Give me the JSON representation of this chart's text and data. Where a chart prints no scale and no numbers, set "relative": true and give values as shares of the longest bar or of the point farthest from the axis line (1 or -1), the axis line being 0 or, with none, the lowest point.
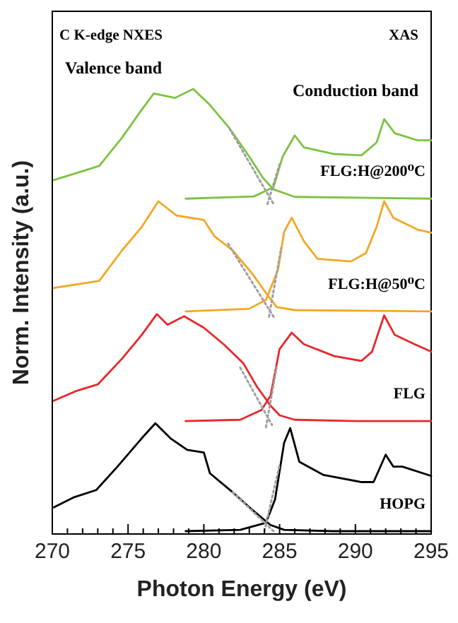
{
  "chart_data": {
    "type": "line",
    "relative": true,
    "xlabel": "Photon Energy (eV)",
    "ylabel": "Norm. Intensity (a.u.)",
    "xlim": [
      270,
      295
    ],
    "xticks": [
      270,
      {
        "value": 271,
        "label": null
      },
      {
        "value": 272,
        "label": null
      },
      {
        "value": 273,
        "label": null
      },
      {
        "value": 274,
        "label": null
      },
      275,
      {
        "value": 276,
        "label": null
      },
      {
        "value": 277,
        "label": null
      },
      {
        "value": 278,
        "label": null
      },
      {
        "value": 279,
        "label": null
      },
      280,
      {
        "value": 281,
        "label": null
      },
      {
        "value": 282,
        "label": null
      },
      {
        "value": 283,
        "label": null
      },
      {
        "value": 284,
        "label": null
      },
      285,
      {
        "value": 286,
        "label": null
      },
      {
        "value": 287,
        "label": null
      },
      {
        "value": 288,
        "label": null
      },
      {
        "value": 289,
        "label": null
      },
      290,
      {
        "value": 291,
        "label": null
      },
      {
        "value": 292,
        "label": null
      },
      {
        "value": 293,
        "label": null
      },
      {
        "value": 294,
        "label": null
      },
      295
    ],
    "annotations": [
      "C K-edge NXES",
      "Valence band",
      "XAS",
      "Conduction band"
    ],
    "series": [
      {
        "color": "#000000",
        "x": [
          270.1,
          271.45,
          272.9,
          274.3,
          275.9,
          276.8,
          277.8,
          278.9,
          280.0,
          280.4,
          281.9,
          283.1,
          284.4,
          285.3,
          288.5,
          295
        ],
        "values": [
          0.054,
          0.077,
          0.093,
          0.146,
          0.21,
          0.244,
          0.21,
          0.184,
          0.178,
          0.131,
          0.088,
          0.051,
          0.014,
          0.003,
          0,
          0
        ]
      },
      {
        "color": "#000000",
        "name": "HOPG",
        "x": [
          278.8,
          282.4,
          284.1,
          284.7,
          285.3,
          285.7,
          286.3,
          287.9,
          290.4,
          291.2,
          292.0,
          292.5,
          293.1,
          295
        ],
        "values": [
          0,
          0.003,
          0.019,
          0.072,
          0.2,
          0.233,
          0.157,
          0.127,
          0.111,
          0.111,
          0.173,
          0.146,
          0.146,
          0.125
        ]
      },
      {
        "color": "#e8262a",
        "x": [
          270.1,
          271.5,
          273,
          274.6,
          275.9,
          276.9,
          277.6,
          278.7,
          280,
          281.3,
          282.6,
          283.5,
          284.4,
          285,
          286,
          290,
          295
        ],
        "values": [
          0.295,
          0.316,
          0.332,
          0.39,
          0.444,
          0.491,
          0.467,
          0.486,
          0.46,
          0.423,
          0.38,
          0.327,
          0.284,
          0.262,
          0.252,
          0.249,
          0.249
        ]
      },
      {
        "color": "#e8262a",
        "name": "FLG",
        "x": [
          278.8,
          282.4,
          283.8,
          284.4,
          285.0,
          285.8,
          286.6,
          288.6,
          290.4,
          291.1,
          291.9,
          292.6,
          293.9,
          295
        ],
        "values": [
          0.249,
          0.252,
          0.274,
          0.306,
          0.412,
          0.449,
          0.423,
          0.396,
          0.385,
          0.406,
          0.488,
          0.444,
          0.423,
          0.406
        ]
      },
      {
        "color": "#f5a623",
        "x": [
          270.1,
          273.1,
          274.6,
          275.9,
          277,
          278.2,
          280,
          280.7,
          281.9,
          283.2,
          284.2,
          284.8,
          286,
          295
        ],
        "values": [
          0.55,
          0.566,
          0.635,
          0.688,
          0.746,
          0.714,
          0.704,
          0.667,
          0.635,
          0.582,
          0.534,
          0.507,
          0.5,
          0.497
        ]
      },
      {
        "color": "#f5a623",
        "name": "FLG:H@50⁰C",
        "x": [
          278.8,
          283,
          284.1,
          284.9,
          285.3,
          285.8,
          286.6,
          287.5,
          289.7,
          290.7,
          291.4,
          291.9,
          292.5,
          294.1,
          295
        ],
        "values": [
          0.497,
          0.503,
          0.523,
          0.592,
          0.677,
          0.709,
          0.656,
          0.616,
          0.61,
          0.629,
          0.688,
          0.746,
          0.709,
          0.682,
          0.675
        ]
      },
      {
        "color": "#7dc242",
        "x": [
          270.1,
          273.1,
          274.6,
          275.9,
          276.7,
          278.1,
          279.3,
          280.4,
          281.7,
          283,
          283.9,
          284.6,
          286,
          295
        ],
        "values": [
          0.794,
          0.826,
          0.89,
          0.953,
          0.99,
          0.98,
          1,
          0.964,
          0.911,
          0.847,
          0.799,
          0.773,
          0.756,
          0.752
        ]
      },
      {
        "color": "#7dc242",
        "name": "FLG:H@200⁰C",
        "x": [
          278.8,
          283.3,
          284.6,
          285.2,
          286,
          286.6,
          288.6,
          290.4,
          291.4,
          291.9,
          292.6,
          294.1,
          295
        ],
        "values": [
          0.752,
          0.757,
          0.778,
          0.847,
          0.895,
          0.868,
          0.853,
          0.85,
          0.879,
          0.932,
          0.9,
          0.884,
          0.884
        ]
      },
      {
        "color": "#a0a0a0",
        "line_style": "dotted",
        "x": [
          281.9,
          284.6
        ],
        "values": [
          0.088,
          0
        ]
      },
      {
        "color": "#a0a0a0",
        "line_style": "dotted",
        "x": [
          284.0,
          285.0
        ],
        "values": [
          0,
          0.15
        ]
      },
      {
        "color": "#a0a0a0",
        "line_style": "dotted",
        "x": [
          282.4,
          284.5
        ],
        "values": [
          0.37,
          0.24
        ]
      },
      {
        "color": "#a0a0a0",
        "line_style": "dotted",
        "x": [
          284.1,
          284.8
        ],
        "values": [
          0.235,
          0.37
        ]
      },
      {
        "color": "#a0a0a0",
        "line_style": "dotted",
        "x": [
          281.6,
          284.6
        ],
        "values": [
          0.65,
          0.485
        ]
      },
      {
        "color": "#a0a0a0",
        "line_style": "dotted",
        "x": [
          284.3,
          285.1
        ],
        "values": [
          0.485,
          0.64
        ]
      },
      {
        "color": "#a0a0a0",
        "line_style": "dotted",
        "x": [
          281.7,
          284.6
        ],
        "values": [
          0.91,
          0.74
        ]
      },
      {
        "color": "#a0a0a0",
        "line_style": "dotted",
        "x": [
          284.2,
          285.0
        ],
        "values": [
          0.74,
          0.83
        ]
      }
    ]
  }
}
